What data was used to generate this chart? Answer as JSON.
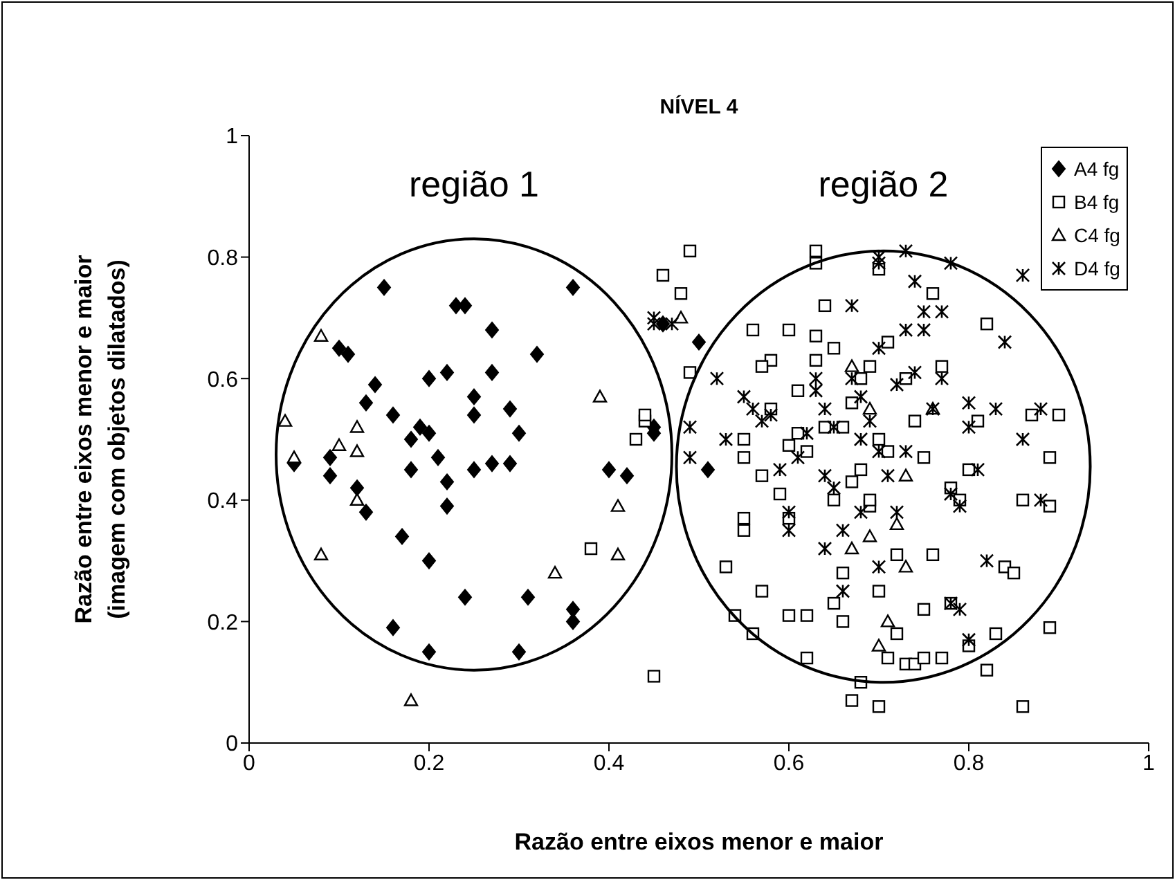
{
  "chart_data": {
    "type": "scatter",
    "title": "NÍVEL 4",
    "xlabel": "Razão entre eixos menor e maior",
    "ylabel": "Razão entre eixos menor e maior\n(imagem com objetos dilatados)",
    "xlim": [
      0,
      1
    ],
    "xticks": [
      0,
      0.2,
      0.4,
      0.6,
      0.8,
      1
    ],
    "ylim": [
      0,
      1
    ],
    "yticks": [
      0,
      0.2,
      0.4,
      0.6,
      0.8,
      1
    ],
    "grid": false,
    "legend": "top right",
    "annotations": [
      "região 1",
      "região 2"
    ],
    "series": [
      {
        "name": "A4 fg",
        "color": "#000000",
        "marker": "diamond",
        "x": [
          0.05,
          0.09,
          0.09,
          0.1,
          0.11,
          0.12,
          0.13,
          0.13,
          0.14,
          0.15,
          0.16,
          0.16,
          0.17,
          0.18,
          0.18,
          0.19,
          0.2,
          0.2,
          0.2,
          0.2,
          0.21,
          0.22,
          0.22,
          0.22,
          0.23,
          0.24,
          0.24,
          0.25,
          0.25,
          0.25,
          0.27,
          0.27,
          0.27,
          0.29,
          0.29,
          0.3,
          0.3,
          0.31,
          0.32,
          0.36,
          0.36,
          0.36,
          0.4,
          0.42,
          0.45,
          0.45,
          0.46,
          0.5,
          0.51
        ],
        "values": [
          0.46,
          0.47,
          0.44,
          0.65,
          0.64,
          0.42,
          0.38,
          0.56,
          0.59,
          0.75,
          0.54,
          0.19,
          0.34,
          0.45,
          0.5,
          0.52,
          0.3,
          0.51,
          0.15,
          0.6,
          0.47,
          0.61,
          0.43,
          0.39,
          0.72,
          0.72,
          0.24,
          0.57,
          0.54,
          0.45,
          0.46,
          0.68,
          0.61,
          0.55,
          0.46,
          0.51,
          0.15,
          0.24,
          0.64,
          0.75,
          0.22,
          0.2,
          0.45,
          0.44,
          0.52,
          0.51,
          0.69,
          0.66,
          0.45
        ]
      },
      {
        "name": "B4 fg",
        "color": "#000000",
        "marker": "square",
        "x": [
          0.44,
          0.44,
          0.45,
          0.43,
          0.38,
          0.46,
          0.49,
          0.48,
          0.49,
          0.53,
          0.54,
          0.55,
          0.55,
          0.55,
          0.55,
          0.56,
          0.56,
          0.57,
          0.57,
          0.58,
          0.58,
          0.59,
          0.6,
          0.6,
          0.6,
          0.61,
          0.61,
          0.62,
          0.62,
          0.62,
          0.63,
          0.63,
          0.63,
          0.64,
          0.64,
          0.65,
          0.65,
          0.65,
          0.66,
          0.66,
          0.67,
          0.67,
          0.67,
          0.68,
          0.68,
          0.68,
          0.69,
          0.69,
          0.69,
          0.7,
          0.7,
          0.7,
          0.7,
          0.71,
          0.71,
          0.72,
          0.72,
          0.73,
          0.73,
          0.74,
          0.74,
          0.75,
          0.75,
          0.76,
          0.76,
          0.77,
          0.77,
          0.78,
          0.78,
          0.79,
          0.8,
          0.8,
          0.81,
          0.82,
          0.82,
          0.83,
          0.84,
          0.85,
          0.86,
          0.86,
          0.87,
          0.89,
          0.89,
          0.89,
          0.9,
          0.71,
          0.75,
          0.66,
          0.6,
          0.57,
          0.63
        ],
        "values": [
          0.53,
          0.54,
          0.11,
          0.5,
          0.32,
          0.77,
          0.81,
          0.74,
          0.61,
          0.29,
          0.21,
          0.37,
          0.35,
          0.5,
          0.47,
          0.68,
          0.18,
          0.25,
          0.44,
          0.55,
          0.63,
          0.41,
          0.68,
          0.37,
          0.21,
          0.51,
          0.58,
          0.14,
          0.48,
          0.21,
          0.81,
          0.79,
          0.63,
          0.52,
          0.72,
          0.4,
          0.65,
          0.23,
          0.52,
          0.28,
          0.07,
          0.43,
          0.56,
          0.1,
          0.6,
          0.45,
          0.62,
          0.39,
          0.4,
          0.06,
          0.78,
          0.5,
          0.25,
          0.66,
          0.48,
          0.18,
          0.31,
          0.13,
          0.6,
          0.13,
          0.53,
          0.47,
          0.22,
          0.74,
          0.31,
          0.14,
          0.62,
          0.42,
          0.23,
          0.4,
          0.45,
          0.16,
          0.53,
          0.69,
          0.12,
          0.18,
          0.29,
          0.28,
          0.06,
          0.4,
          0.54,
          0.47,
          0.19,
          0.39,
          0.54,
          0.14,
          0.14,
          0.2,
          0.49,
          0.62,
          0.67
        ]
      },
      {
        "name": "C4 fg",
        "color": "#000000",
        "marker": "triangle",
        "x": [
          0.04,
          0.05,
          0.08,
          0.08,
          0.1,
          0.12,
          0.12,
          0.12,
          0.18,
          0.34,
          0.39,
          0.41,
          0.41,
          0.48,
          0.69,
          0.67,
          0.69,
          0.7,
          0.71,
          0.72,
          0.73,
          0.76,
          0.67,
          0.73
        ],
        "values": [
          0.53,
          0.47,
          0.31,
          0.67,
          0.49,
          0.52,
          0.4,
          0.48,
          0.07,
          0.28,
          0.57,
          0.39,
          0.31,
          0.7,
          0.55,
          0.32,
          0.34,
          0.16,
          0.2,
          0.36,
          0.29,
          0.55,
          0.62,
          0.44
        ]
      },
      {
        "name": "D4 fg",
        "color": "#000000",
        "marker": "cross",
        "x": [
          0.45,
          0.45,
          0.47,
          0.49,
          0.49,
          0.52,
          0.53,
          0.55,
          0.56,
          0.57,
          0.58,
          0.59,
          0.6,
          0.6,
          0.61,
          0.62,
          0.63,
          0.63,
          0.64,
          0.64,
          0.64,
          0.65,
          0.65,
          0.66,
          0.66,
          0.67,
          0.67,
          0.68,
          0.68,
          0.68,
          0.69,
          0.7,
          0.7,
          0.7,
          0.7,
          0.71,
          0.72,
          0.72,
          0.73,
          0.73,
          0.74,
          0.74,
          0.75,
          0.75,
          0.76,
          0.77,
          0.78,
          0.78,
          0.78,
          0.79,
          0.79,
          0.8,
          0.8,
          0.8,
          0.81,
          0.82,
          0.83,
          0.84,
          0.86,
          0.86,
          0.88,
          0.88,
          0.77,
          0.7,
          0.73
        ],
        "values": [
          0.7,
          0.69,
          0.69,
          0.52,
          0.47,
          0.6,
          0.5,
          0.57,
          0.55,
          0.53,
          0.54,
          0.45,
          0.38,
          0.35,
          0.47,
          0.51,
          0.6,
          0.58,
          0.55,
          0.32,
          0.44,
          0.52,
          0.42,
          0.35,
          0.25,
          0.72,
          0.6,
          0.57,
          0.38,
          0.5,
          0.53,
          0.8,
          0.79,
          0.65,
          0.29,
          0.44,
          0.38,
          0.59,
          0.81,
          0.68,
          0.61,
          0.76,
          0.68,
          0.71,
          0.55,
          0.6,
          0.79,
          0.41,
          0.23,
          0.39,
          0.22,
          0.17,
          0.52,
          0.56,
          0.45,
          0.3,
          0.55,
          0.66,
          0.77,
          0.5,
          0.55,
          0.4,
          0.71,
          0.48,
          0.48
        ]
      }
    ]
  }
}
